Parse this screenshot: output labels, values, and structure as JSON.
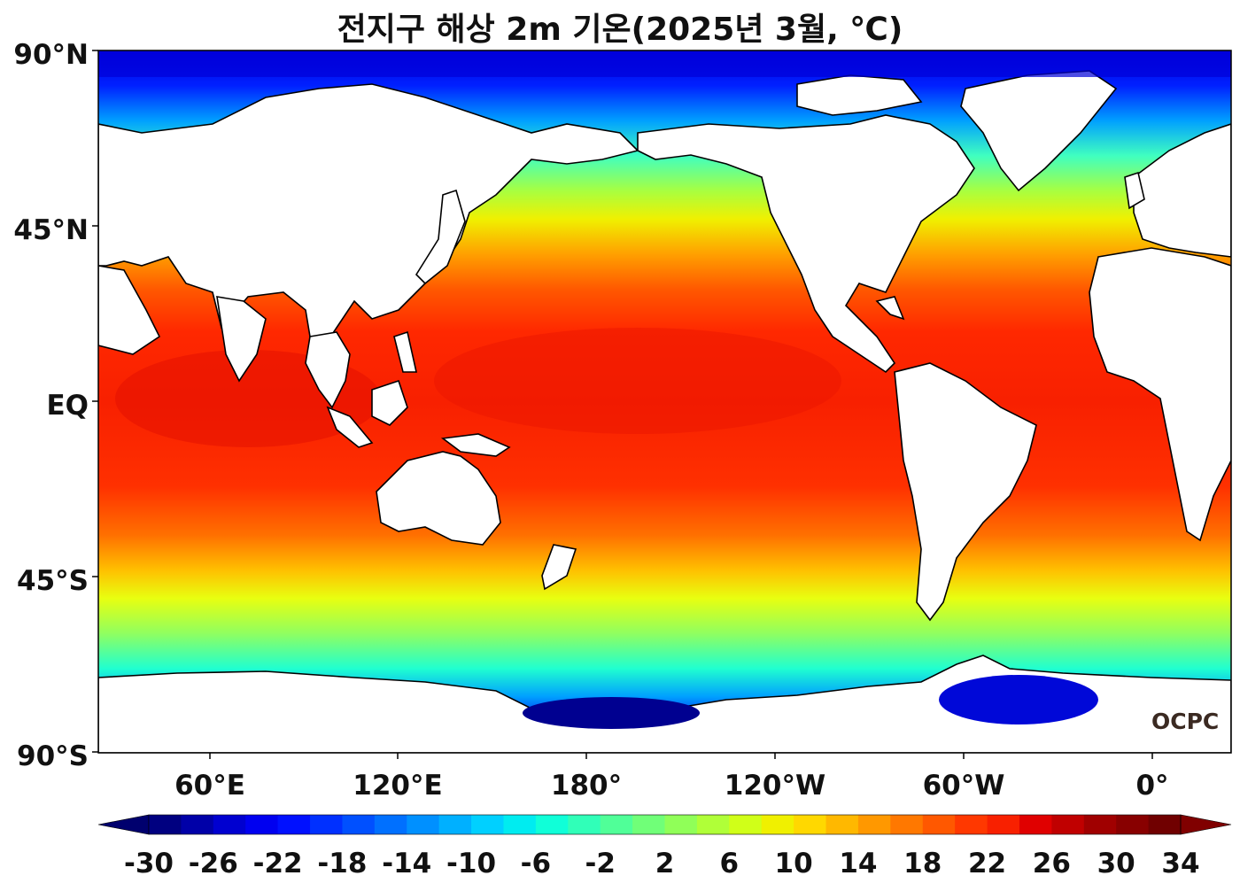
{
  "title": "전지구 해상 2m 기온(2025년 3월, ℃)",
  "logo_text": "OCPC",
  "map": {
    "lat_labels": [
      "90°N",
      "45°N",
      "EQ",
      "45°S",
      "90°S"
    ],
    "lon_labels": [
      "60°E",
      "120°E",
      "180°",
      "120°W",
      "60°W",
      "0°"
    ]
  },
  "colorbar": {
    "labels": [
      "-30",
      "-26",
      "-22",
      "-18",
      "-14",
      "-10",
      "-6",
      "-2",
      "2",
      "6",
      "10",
      "14",
      "18",
      "22",
      "26",
      "30",
      "34"
    ],
    "min": -30,
    "max": 34,
    "step": 2,
    "colors": [
      "#000080",
      "#0000a8",
      "#0000d0",
      "#0000f0",
      "#0010ff",
      "#0030ff",
      "#0050ff",
      "#0070ff",
      "#0090ff",
      "#00b0ff",
      "#00d0ff",
      "#00ecf0",
      "#10ffd8",
      "#30ffb8",
      "#50ff98",
      "#70ff78",
      "#90ff58",
      "#b0ff38",
      "#d0ff18",
      "#f0f000",
      "#ffd800",
      "#ffb800",
      "#ff9800",
      "#ff7800",
      "#ff5800",
      "#ff3800",
      "#f82000",
      "#e00000",
      "#c00000",
      "#a00000",
      "#880000",
      "#700000"
    ],
    "under_color": "#00006e",
    "over_color": "#800000"
  }
}
